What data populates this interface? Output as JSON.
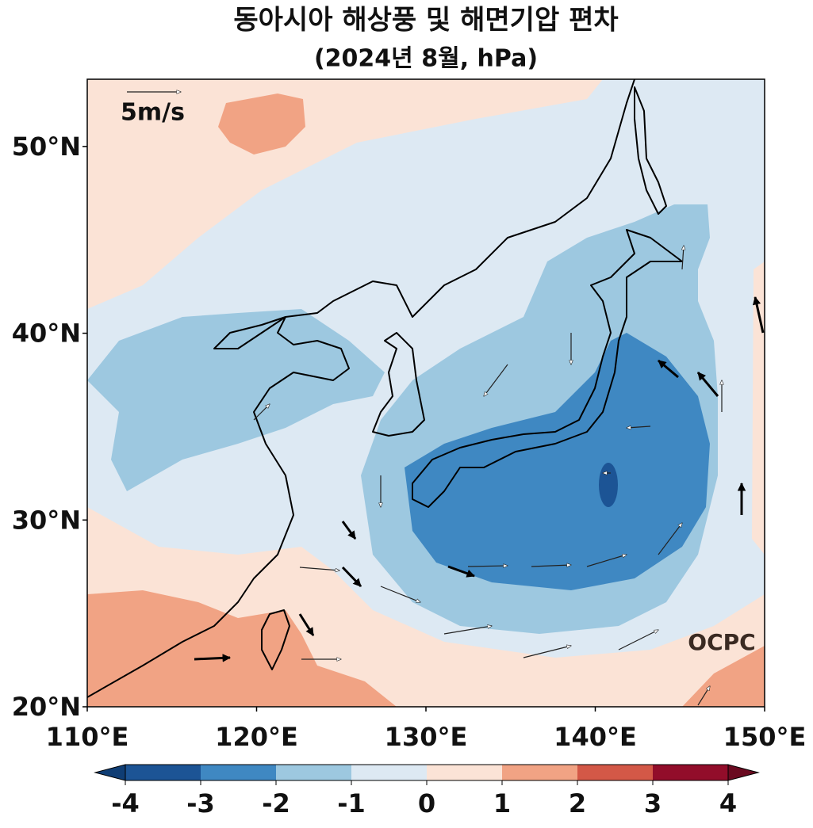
{
  "title": "동아시아 해상풍 및 해면기압 편차",
  "subtitle": "(2024년 8월, hPa)",
  "map": {
    "lonlim": [
      110,
      150
    ],
    "latlim": [
      20,
      53.6
    ],
    "lon_ticks": [
      {
        "value": 110,
        "label": "110°E"
      },
      {
        "value": 120,
        "label": "120°E"
      },
      {
        "value": 130,
        "label": "130°E"
      },
      {
        "value": 140,
        "label": "140°E"
      },
      {
        "value": 150,
        "label": "150°E"
      }
    ],
    "lat_ticks": [
      {
        "value": 20,
        "label": "20°N"
      },
      {
        "value": 30,
        "label": "30°N"
      },
      {
        "value": 40,
        "label": "40°N"
      },
      {
        "value": 50,
        "label": "50°N"
      }
    ],
    "reference_vector": "5m/s",
    "logo": "OCPC"
  },
  "colorbar": {
    "levels": [
      -4,
      -3,
      -2,
      -1,
      0,
      1,
      2,
      3,
      4
    ],
    "colors": [
      "#1c5495",
      "#3f88c2",
      "#9dc8e0",
      "#dde9f3",
      "#fbe3d6",
      "#f1a384",
      "#d35847",
      "#920d2a"
    ],
    "under_color": "#0f3d74",
    "over_color": "#6a0a20"
  }
}
